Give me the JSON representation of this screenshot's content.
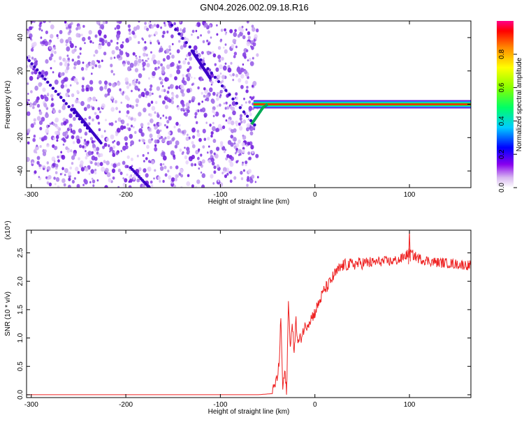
{
  "title": "GN04.2026.002.09.18.R16",
  "colors": {
    "line": "#ee2222",
    "axis": "#000000",
    "background": "#ffffff"
  },
  "chart_data": [
    {
      "type": "heatmap",
      "xlabel": "Height of straight line (km)",
      "ylabel": "Frequency (Hz)",
      "xlim": [
        -305,
        165
      ],
      "ylim": [
        -50,
        50
      ],
      "xticks": [
        -300,
        -200,
        -100,
        0,
        100
      ],
      "yticks": [
        -40,
        -20,
        0,
        20,
        40
      ],
      "noise_region_xmax": -60,
      "signal_band": {
        "center_hz": 0,
        "width_hz": 3,
        "x_start": -60,
        "x_end": 165
      },
      "colorbar": {
        "label": "Normalized spectral amplitude",
        "range": [
          0,
          1
        ],
        "ticks": [
          "0.0",
          "0.2",
          "0.4",
          "0.6",
          "0.8"
        ]
      }
    },
    {
      "type": "line",
      "xlabel": "Height of straight line (km)",
      "ylabel": "SNR (10 * v/v)",
      "yscale_label": "(x10⁴)",
      "xlim": [
        -305,
        165
      ],
      "ylim": [
        -0.05,
        2.9
      ],
      "xticks": [
        -300,
        -200,
        -100,
        0,
        100
      ],
      "yticks": [
        "0.0",
        "0.5",
        "1.0",
        "1.5",
        "2.0",
        "2.5"
      ],
      "series": [
        {
          "name": "SNR",
          "x": [
            -305,
            -60,
            -45,
            -40,
            -38,
            -36,
            -34,
            -32,
            -30,
            -28,
            -26,
            -24,
            -22,
            -20,
            -18,
            -15,
            -12,
            -8,
            -4,
            0,
            5,
            10,
            15,
            20,
            25,
            30,
            40,
            50,
            60,
            70,
            80,
            90,
            100,
            110,
            120,
            130,
            140,
            150,
            165
          ],
          "values": [
            0.0,
            0.0,
            0.02,
            0.3,
            0.5,
            1.35,
            0.1,
            0.4,
            0.05,
            1.6,
            0.9,
            1.2,
            0.8,
            1.3,
            0.9,
            1.0,
            1.15,
            1.25,
            1.35,
            1.45,
            1.65,
            1.85,
            1.95,
            2.1,
            2.2,
            2.28,
            2.3,
            2.32,
            2.33,
            2.35,
            2.35,
            2.38,
            2.5,
            2.4,
            2.36,
            2.33,
            2.32,
            2.3,
            2.28
          ]
        }
      ]
    }
  ]
}
